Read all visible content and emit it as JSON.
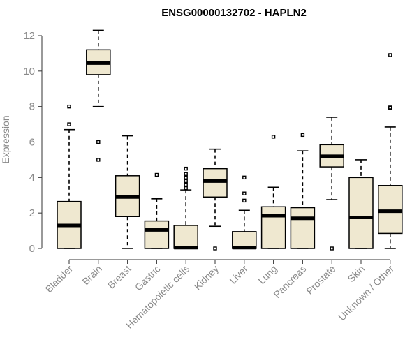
{
  "chart_data": {
    "type": "boxplot",
    "title": "ENSG00000132702 - HAPLN2",
    "xlabel": "",
    "ylabel": "Expression",
    "ylim": [
      0,
      12.3
    ],
    "yticks": [
      0,
      2,
      4,
      6,
      8,
      10,
      12
    ],
    "grid": false,
    "categories": [
      "Bladder",
      "Brain",
      "Breast",
      "Gastric",
      "Hematopoietic cells",
      "Kidney",
      "Liver",
      "Lung",
      "Pancreas",
      "Prostate",
      "Skin",
      "Unknown / Other"
    ],
    "boxes": [
      {
        "name": "Bladder",
        "min": 0,
        "q1": 0,
        "median": 1.3,
        "q3": 2.65,
        "max": 6.7,
        "outliers": [
          7.0,
          8.0
        ]
      },
      {
        "name": "Brain",
        "min": 8.0,
        "q1": 9.8,
        "median": 10.45,
        "q3": 11.2,
        "max": 12.3,
        "outliers": [
          6.0,
          5.0
        ]
      },
      {
        "name": "Breast",
        "min": 0,
        "q1": 1.8,
        "median": 2.9,
        "q3": 4.1,
        "max": 6.35,
        "outliers": []
      },
      {
        "name": "Gastric",
        "min": 0,
        "q1": 0,
        "median": 1.05,
        "q3": 1.55,
        "max": 2.8,
        "outliers": [
          4.15
        ]
      },
      {
        "name": "Hematopoietic cells",
        "min": 0,
        "q1": 0,
        "median": 0.05,
        "q3": 1.3,
        "max": 3.3,
        "outliers": [
          3.4,
          3.6,
          3.8,
          4.0,
          4.2,
          4.5
        ]
      },
      {
        "name": "Kidney",
        "min": 1.25,
        "q1": 2.9,
        "median": 3.8,
        "q3": 4.5,
        "max": 5.6,
        "outliers": [
          0
        ]
      },
      {
        "name": "Liver",
        "min": 0,
        "q1": 0,
        "median": 0.05,
        "q3": 0.95,
        "max": 2.15,
        "outliers": [
          2.7,
          3.1,
          4.0
        ]
      },
      {
        "name": "Lung",
        "min": 0,
        "q1": 0,
        "median": 1.85,
        "q3": 2.35,
        "max": 3.45,
        "outliers": [
          6.3
        ]
      },
      {
        "name": "Pancreas",
        "min": 0,
        "q1": 0,
        "median": 1.7,
        "q3": 2.3,
        "max": 5.5,
        "outliers": [
          6.4
        ]
      },
      {
        "name": "Prostate",
        "min": 2.75,
        "q1": 4.6,
        "median": 5.2,
        "q3": 5.85,
        "max": 7.4,
        "outliers": [
          0
        ]
      },
      {
        "name": "Skin",
        "min": 0,
        "q1": 0,
        "median": 1.75,
        "q3": 4.0,
        "max": 5.0,
        "outliers": []
      },
      {
        "name": "Unknown / Other",
        "min": 0,
        "q1": 0.85,
        "median": 2.1,
        "q3": 3.55,
        "max": 6.85,
        "outliers": [
          7.9,
          7.95,
          10.9
        ]
      }
    ]
  }
}
